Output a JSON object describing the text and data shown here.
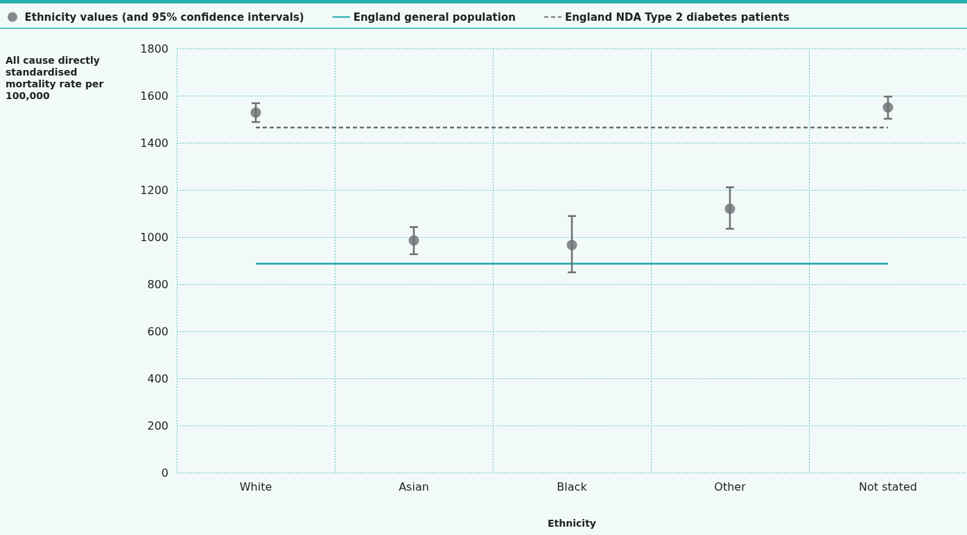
{
  "chart_data": {
    "type": "scatter",
    "xlabel": "Ethnicity",
    "ylabel": "All cause directly standardised mortality rate per 100,000",
    "categories": [
      "White",
      "Asian",
      "Black",
      "Other",
      "Not stated"
    ],
    "series": [
      {
        "name": "Ethnicity values (and 95% confidence intervals)",
        "color": "#6d6e71",
        "marker": "circle",
        "values": [
          1528,
          985,
          966,
          1120,
          1550
        ],
        "errors": [
          [
            1488,
            1568
          ],
          [
            927,
            1042
          ],
          [
            850,
            1089
          ],
          [
            1035,
            1211
          ],
          [
            1502,
            1596
          ]
        ]
      },
      {
        "name": "England general population",
        "type": "line",
        "color": "#1aa6a6",
        "marker": "none",
        "line_style": "solid",
        "values": [
          887,
          887,
          887,
          887,
          887
        ]
      },
      {
        "name": "England NDA Type 2 diabetes patients",
        "type": "line",
        "color": "#6d6e71",
        "marker": "none",
        "line_style": "dashed",
        "values": [
          1465,
          1465,
          1465,
          1465,
          1465
        ]
      }
    ],
    "ylim": [
      0,
      1800
    ],
    "yticks": [
      0,
      200,
      400,
      600,
      800,
      1000,
      1200,
      1400,
      1600,
      1800
    ],
    "grid": true,
    "legend": "top"
  }
}
